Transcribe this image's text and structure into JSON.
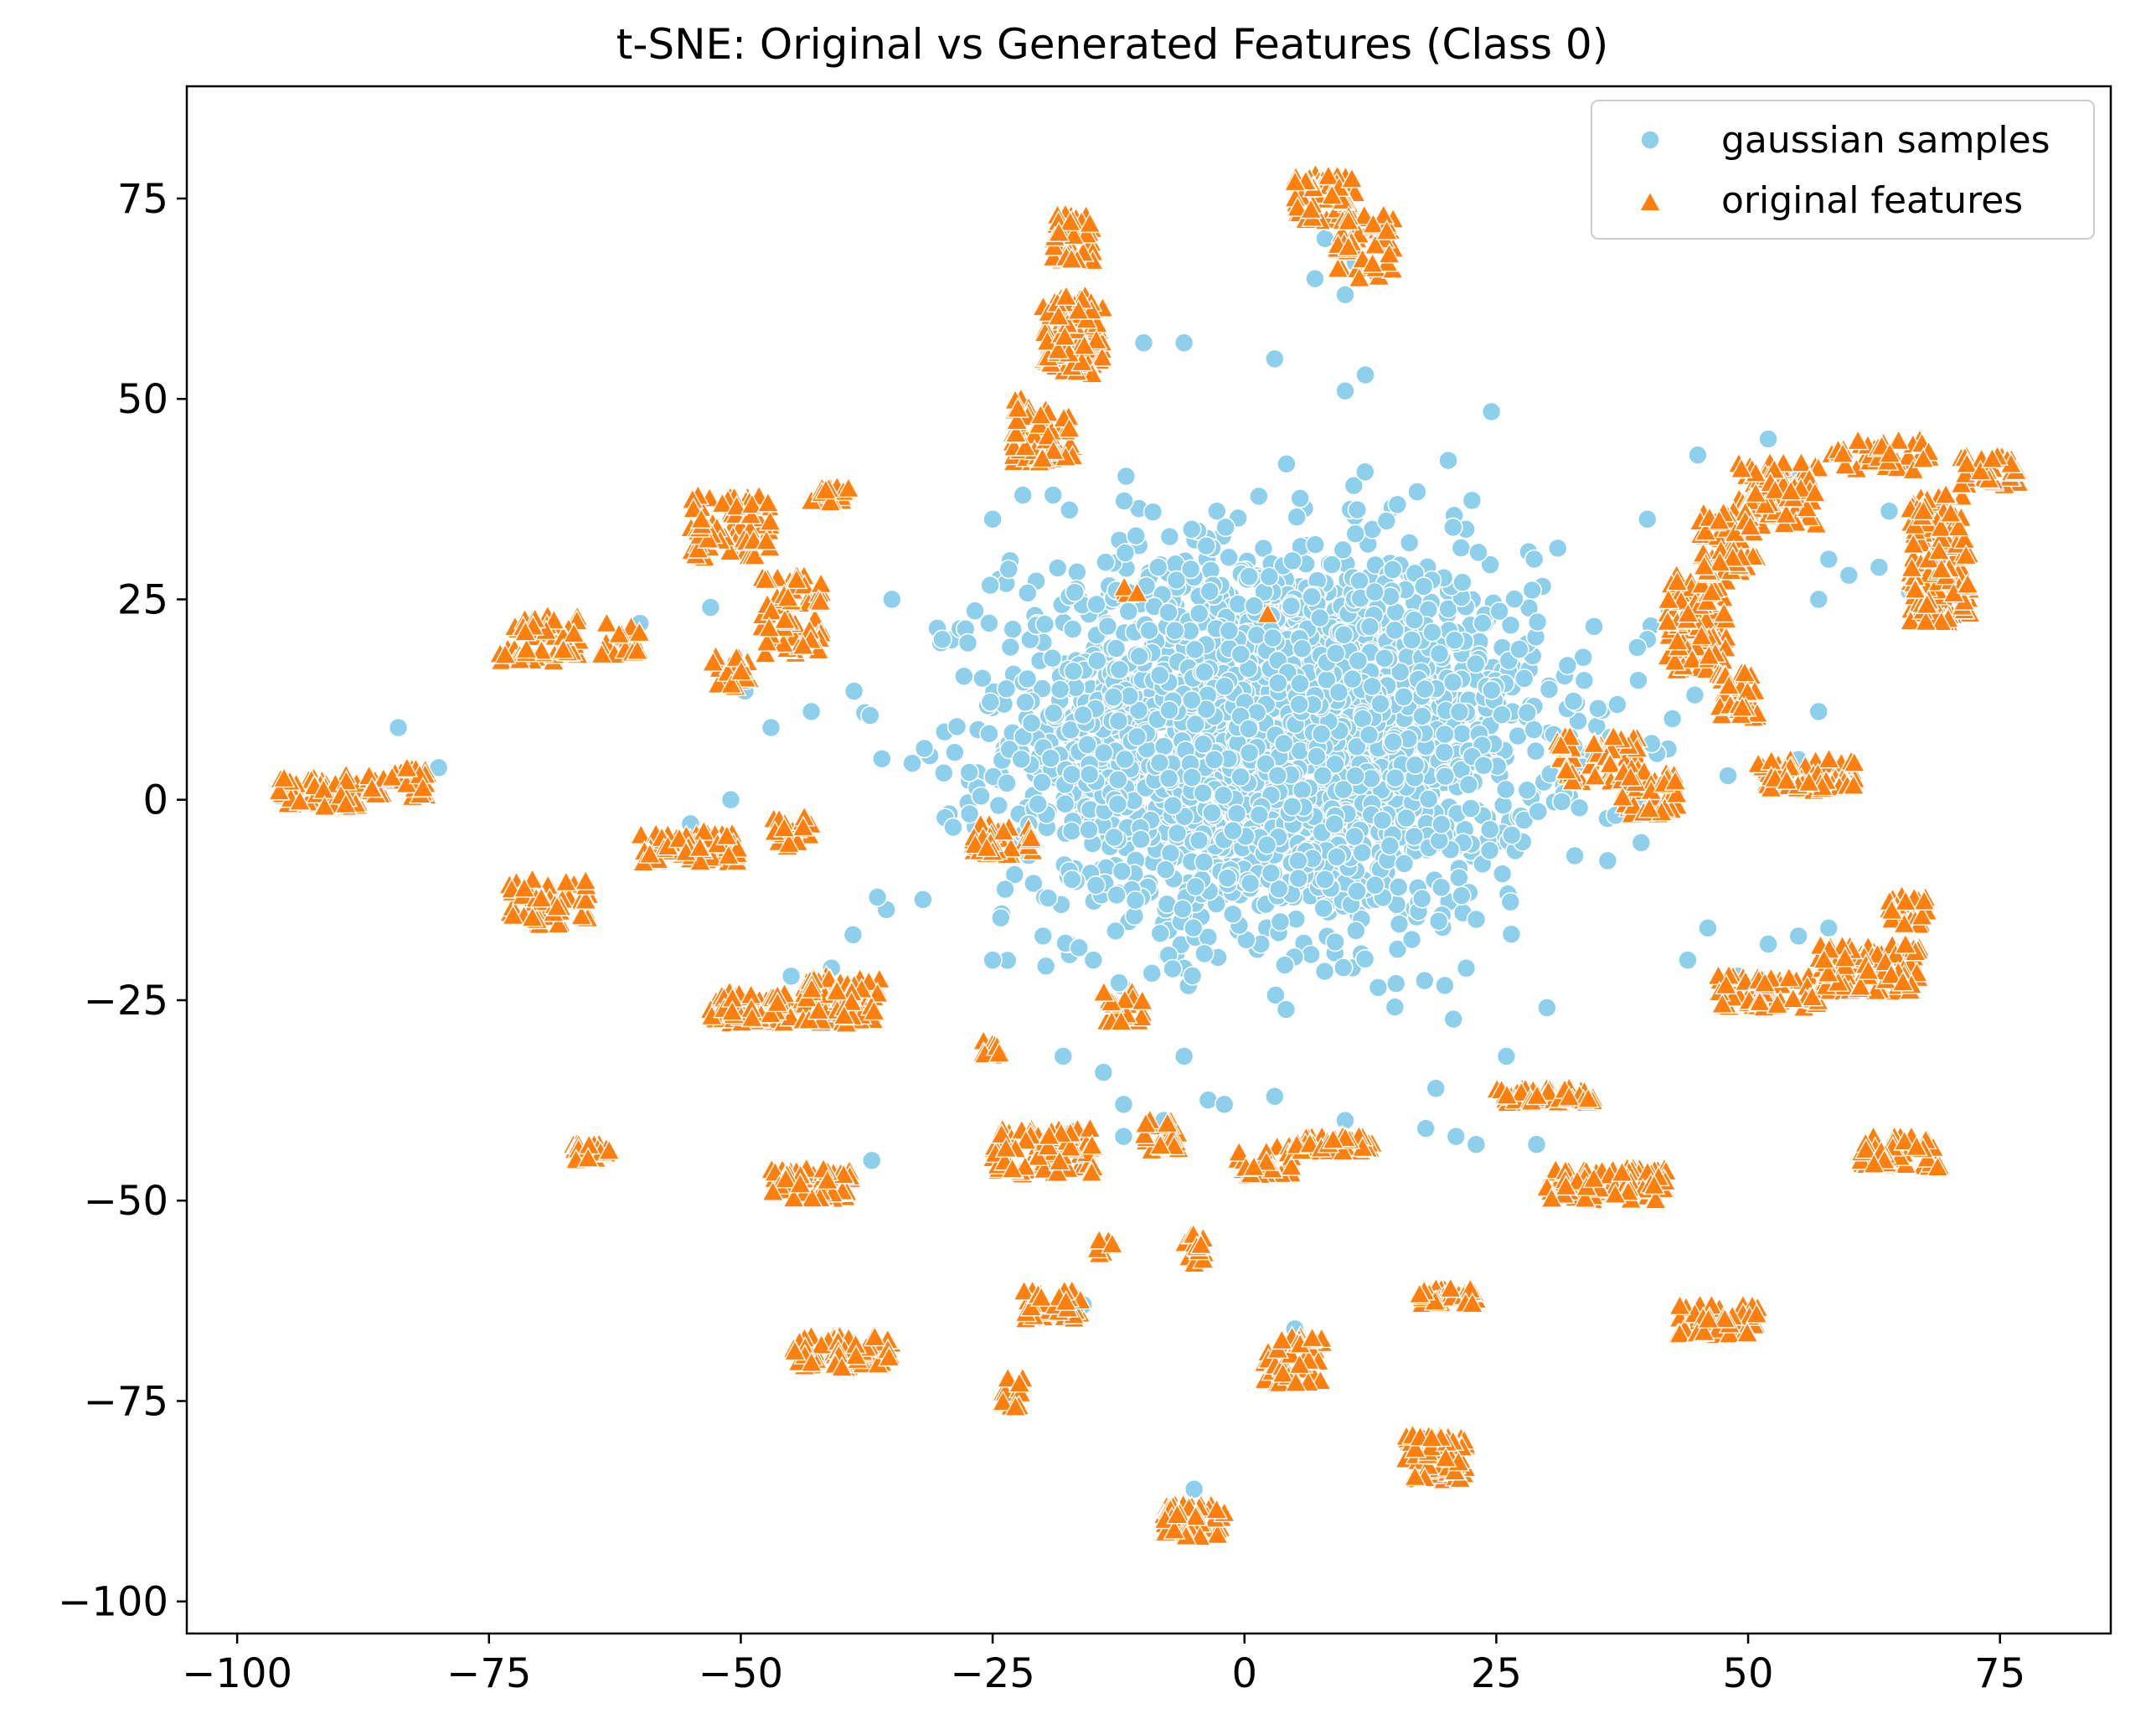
{
  "chart_data": {
    "type": "scatter",
    "title": "t-SNE: Original vs Generated Features (Class 0)",
    "xlabel": "",
    "ylabel": "",
    "xlim": [
      -105,
      86
    ],
    "ylim": [
      -104,
      89
    ],
    "x_ticks": [
      -100,
      -75,
      -50,
      -25,
      0,
      25,
      50,
      75
    ],
    "y_ticks": [
      -100,
      -75,
      -50,
      -25,
      0,
      25,
      50,
      75
    ],
    "x_tick_labels": [
      "−100",
      "−75",
      "−50",
      "−25",
      "0",
      "25",
      "50",
      "75"
    ],
    "y_tick_labels": [
      "−100",
      "−75",
      "−50",
      "−25",
      "0",
      "25",
      "50",
      "75"
    ],
    "grid": false,
    "legend_position": "top-right",
    "series": [
      {
        "name": "gaussian samples",
        "marker": "circle",
        "color": "#8ecfeb",
        "sample_note": "dense central blob plus sparse outliers",
        "cluster": {
          "center": [
            3,
            8
          ],
          "spread": [
            21,
            19
          ],
          "count": 2600
        },
        "outliers": [
          [
            -84,
            9
          ],
          [
            -80,
            4
          ],
          [
            -60,
            22
          ],
          [
            -53,
            24
          ],
          [
            -51,
            0
          ],
          [
            -55,
            -3
          ],
          [
            -47,
            9
          ],
          [
            -43,
            11
          ],
          [
            -19,
            38
          ],
          [
            -10,
            57
          ],
          [
            -6,
            57
          ],
          [
            3,
            55
          ],
          [
            8,
            70
          ],
          [
            7,
            65
          ],
          [
            10,
            63
          ],
          [
            11,
            67
          ],
          [
            40,
            35
          ],
          [
            45,
            43
          ],
          [
            52,
            45
          ],
          [
            58,
            30
          ],
          [
            60,
            28
          ],
          [
            57,
            25
          ],
          [
            57,
            11
          ],
          [
            64,
            36
          ],
          [
            63,
            29
          ],
          [
            66,
            26
          ],
          [
            50,
            35
          ],
          [
            55,
            40
          ],
          [
            40,
            20
          ],
          [
            39,
            19
          ],
          [
            47,
            18
          ],
          [
            55,
            5
          ],
          [
            48,
            3
          ],
          [
            -45,
            -22
          ],
          [
            -41,
            -21
          ],
          [
            -37,
            -45
          ],
          [
            -17,
            -62
          ],
          [
            -16,
            -63
          ],
          [
            -6,
            -32
          ],
          [
            -2,
            -38
          ],
          [
            3,
            -37
          ],
          [
            10,
            -40
          ],
          [
            5,
            -66
          ],
          [
            -5,
            -86
          ],
          [
            19,
            -36
          ],
          [
            21,
            -42
          ],
          [
            18,
            -41
          ],
          [
            23,
            -43
          ],
          [
            26,
            -32
          ],
          [
            29,
            -43
          ],
          [
            44,
            -20
          ],
          [
            46,
            -16
          ],
          [
            49,
            -22
          ],
          [
            52,
            -18
          ],
          [
            55,
            -17
          ],
          [
            58,
            -16
          ],
          [
            12,
            53
          ],
          [
            10,
            51
          ],
          [
            -35,
            25
          ],
          [
            -30,
            20
          ],
          [
            -25,
            35
          ],
          [
            -22,
            38
          ],
          [
            -25,
            -20
          ],
          [
            -20,
            -17
          ],
          [
            -15,
            -20
          ],
          [
            -12,
            -38
          ],
          [
            -8,
            -40
          ],
          [
            -12,
            -42
          ],
          [
            -18,
            -32
          ],
          [
            -14,
            -34
          ]
        ]
      },
      {
        "name": "original features",
        "marker": "triangle",
        "color": "#ff7f0e",
        "sample_note": "many small tight clusters around the periphery",
        "clusters": [
          {
            "center": [
              -92,
              1
            ],
            "spread": [
              4,
              2
            ],
            "count": 70
          },
          {
            "center": [
              -84,
              2
            ],
            "spread": [
              3,
              2
            ],
            "count": 40
          },
          {
            "center": [
              -70,
              20
            ],
            "spread": [
              4,
              3
            ],
            "count": 60
          },
          {
            "center": [
              -62,
              20
            ],
            "spread": [
              2,
              2
            ],
            "count": 25
          },
          {
            "center": [
              -69,
              -13
            ],
            "spread": [
              4,
              3
            ],
            "count": 55
          },
          {
            "center": [
              -55,
              -6
            ],
            "spread": [
              5,
              2
            ],
            "count": 70
          },
          {
            "center": [
              -45,
              -4
            ],
            "spread": [
              2,
              2
            ],
            "count": 20
          },
          {
            "center": [
              -51,
              34
            ],
            "spread": [
              4,
              4
            ],
            "count": 80
          },
          {
            "center": [
              -45,
              23
            ],
            "spread": [
              3,
              5
            ],
            "count": 60
          },
          {
            "center": [
              -41,
              38
            ],
            "spread": [
              2,
              1
            ],
            "count": 20
          },
          {
            "center": [
              -51,
              16
            ],
            "spread": [
              2,
              2
            ],
            "count": 20
          },
          {
            "center": [
              -24,
              -5
            ],
            "spread": [
              3,
              2
            ],
            "count": 40
          },
          {
            "center": [
              -49,
              -26
            ],
            "spread": [
              4,
              2
            ],
            "count": 70
          },
          {
            "center": [
              -40,
              -25
            ],
            "spread": [
              4,
              3
            ],
            "count": 80
          },
          {
            "center": [
              -25,
              -31
            ],
            "spread": [
              1,
              1
            ],
            "count": 12
          },
          {
            "center": [
              -65,
              -44
            ],
            "spread": [
              2,
              1
            ],
            "count": 20
          },
          {
            "center": [
              -43,
              -48
            ],
            "spread": [
              4,
              2
            ],
            "count": 60
          },
          {
            "center": [
              -20,
              -44
            ],
            "spread": [
              5,
              3
            ],
            "count": 90
          },
          {
            "center": [
              -40,
              -69
            ],
            "spread": [
              5,
              2
            ],
            "count": 70
          },
          {
            "center": [
              -19,
              -63
            ],
            "spread": [
              3,
              2
            ],
            "count": 40
          },
          {
            "center": [
              -23,
              -74
            ],
            "spread": [
              1,
              2
            ],
            "count": 12
          },
          {
            "center": [
              -14,
              -56
            ],
            "spread": [
              1,
              1
            ],
            "count": 6
          },
          {
            "center": [
              -17,
              70
            ],
            "spread": [
              2,
              3
            ],
            "count": 60
          },
          {
            "center": [
              -17,
              58
            ],
            "spread": [
              3,
              5
            ],
            "count": 110
          },
          {
            "center": [
              -20,
              46
            ],
            "spread": [
              3,
              4
            ],
            "count": 70
          },
          {
            "center": [
              -11,
              26
            ],
            "spread": [
              1,
              1
            ],
            "count": 4
          },
          {
            "center": [
              -12,
              -26
            ],
            "spread": [
              2,
              2
            ],
            "count": 20
          },
          {
            "center": [
              -8,
              -42
            ],
            "spread": [
              2,
              2
            ],
            "count": 20
          },
          {
            "center": [
              -5,
              -56
            ],
            "spread": [
              1,
              2
            ],
            "count": 15
          },
          {
            "center": [
              -5,
              -90
            ],
            "spread": [
              3,
              2
            ],
            "count": 80
          },
          {
            "center": [
              2,
              -45
            ],
            "spread": [
              3,
              2
            ],
            "count": 25
          },
          {
            "center": [
              5,
              -70
            ],
            "spread": [
              3,
              3
            ],
            "count": 50
          },
          {
            "center": [
              8,
              75
            ],
            "spread": [
              3,
              3
            ],
            "count": 60
          },
          {
            "center": [
              12,
              69
            ],
            "spread": [
              3,
              4
            ],
            "count": 55
          },
          {
            "center": [
              9,
              -43
            ],
            "spread": [
              4,
              1
            ],
            "count": 50
          },
          {
            "center": [
              20,
              -62
            ],
            "spread": [
              3,
              1
            ],
            "count": 40
          },
          {
            "center": [
              19,
              -82
            ],
            "spread": [
              3,
              3
            ],
            "count": 90
          },
          {
            "center": [
              30,
              -37
            ],
            "spread": [
              5,
              1
            ],
            "count": 55
          },
          {
            "center": [
              36,
              -48
            ],
            "spread": [
              6,
              2
            ],
            "count": 95
          },
          {
            "center": [
              35,
              5
            ],
            "spread": [
              4,
              3
            ],
            "count": 60
          },
          {
            "center": [
              40,
              1
            ],
            "spread": [
              3,
              3
            ],
            "count": 50
          },
          {
            "center": [
              45,
              22
            ],
            "spread": [
              3,
              6
            ],
            "count": 100
          },
          {
            "center": [
              49,
              13
            ],
            "spread": [
              2,
              3
            ],
            "count": 40
          },
          {
            "center": [
              53,
              38
            ],
            "spread": [
              4,
              4
            ],
            "count": 80
          },
          {
            "center": [
              48,
              32
            ],
            "spread": [
              3,
              4
            ],
            "count": 60
          },
          {
            "center": [
              56,
              3
            ],
            "spread": [
              5,
              2
            ],
            "count": 70
          },
          {
            "center": [
              63,
              43
            ],
            "spread": [
              5,
              2
            ],
            "count": 45
          },
          {
            "center": [
              69,
              30
            ],
            "spread": [
              3,
              8
            ],
            "count": 130
          },
          {
            "center": [
              74,
              41
            ],
            "spread": [
              3,
              2
            ],
            "count": 40
          },
          {
            "center": [
              47,
              -65
            ],
            "spread": [
              4,
              2
            ],
            "count": 60
          },
          {
            "center": [
              52,
              -24
            ],
            "spread": [
              5,
              2
            ],
            "count": 60
          },
          {
            "center": [
              62,
              -21
            ],
            "spread": [
              5,
              3
            ],
            "count": 110
          },
          {
            "center": [
              66,
              -14
            ],
            "spread": [
              2,
              2
            ],
            "count": 25
          },
          {
            "center": [
              65,
              -44
            ],
            "spread": [
              4,
              2
            ],
            "count": 50
          },
          {
            "center": [
              2,
              23
            ],
            "spread": [
              0.3,
              0.3
            ],
            "count": 1
          }
        ]
      }
    ]
  }
}
